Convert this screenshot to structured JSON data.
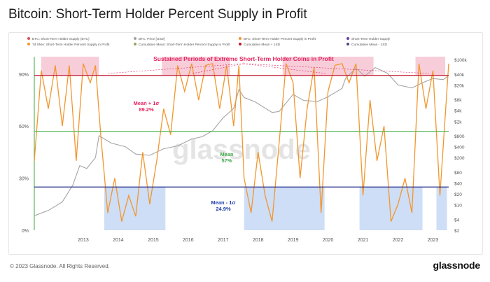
{
  "title": "Bitcoin: Short-Term Holder Percent Supply in Profit",
  "footer": {
    "copyright": "© 2023 Glassnode. All Rights Reserved.",
    "brand": "glassnode"
  },
  "colors": {
    "sth_line": "#f2962d",
    "price_line": "#a4a4a4",
    "mean_plus": "#c0172f",
    "mean": "#5cb85c",
    "mean_minus": "#1f2a8a",
    "high_zone": "#f7c4d4",
    "low_zone": "#c6d8f4",
    "annotation_pink": "#e3245f",
    "annotation_green": "#3ca84a",
    "annotation_blue": "#1e3fae"
  },
  "chart_data": {
    "type": "line",
    "title": "Bitcoin: Short-Term Holder Percent Supply in Profit",
    "legend": {
      "placement": "top",
      "entries": [
        "BTC: Short-Term Holder Supply (BTC)",
        "BTC: Price [USD]",
        "BTC: Short-Term Holder Percent Supply in Profit",
        "Short-Term Holder Supply",
        "7d SMA: Short-Term Holder Percent Supply in Profit",
        "Cumulative Mean: Short-Term Holder Percent Supply in Profit",
        "Cumulative Mean + 1SD",
        "Cumulative Mean - 1SD"
      ]
    },
    "x_ticks": [
      "2013",
      "2014",
      "2015",
      "2016",
      "2017",
      "2018",
      "2019",
      "2020",
      "2021",
      "2022",
      "2023"
    ],
    "x_range": [
      2012.1,
      2023.95
    ],
    "y_left": {
      "ticks": [
        "0%",
        "30%",
        "60%",
        "90%"
      ],
      "range": [
        0,
        100
      ]
    },
    "y_right": {
      "scale": "log",
      "ticks": [
        "$2",
        "$4",
        "$10",
        "$20",
        "$40",
        "$80",
        "$200",
        "$400",
        "$800",
        "$2k",
        "$4k",
        "$8k",
        "$20k",
        "$40k",
        "$100k"
      ],
      "range": [
        2,
        120000
      ]
    },
    "reference_lines": [
      {
        "name": "Mean + 1σ",
        "value": 89.2
      },
      {
        "name": "Mean",
        "value": 57
      },
      {
        "name": "Mean - 1σ",
        "value": 24.9
      }
    ],
    "annotations": {
      "high_periods": "Sustained Periods of Extreme Short-Term Holder Coins in Profit",
      "mean_plus_label": "Mean + 1σ",
      "mean_plus_value": "89.2%",
      "mean_label": "Mean",
      "mean_value": "57%",
      "mean_minus_label": "Mean - 1σ",
      "mean_minus_value": "24.9%"
    },
    "high_zones": [
      [
        2012.3,
        2013.95
      ],
      [
        2015.75,
        2017.7
      ],
      [
        2019.2,
        2021.8
      ],
      [
        2023.0,
        2023.85
      ]
    ],
    "low_zones": [
      [
        2014.1,
        2015.85
      ],
      [
        2018.1,
        2020.4
      ],
      [
        2021.4,
        2023.2
      ],
      [
        2023.6,
        2023.9
      ]
    ],
    "series": [
      {
        "name": "BTC: Price [USD]",
        "x": [
          2012.1,
          2012.5,
          2012.9,
          2013.2,
          2013.4,
          2013.6,
          2013.85,
          2013.95,
          2014.3,
          2014.7,
          2015.0,
          2015.4,
          2015.8,
          2016.2,
          2016.6,
          2016.9,
          2017.2,
          2017.5,
          2017.8,
          2017.95,
          2018.1,
          2018.4,
          2018.9,
          2019.1,
          2019.5,
          2019.8,
          2020.2,
          2020.5,
          2020.9,
          2021.0,
          2021.3,
          2021.55,
          2021.85,
          2022.2,
          2022.5,
          2022.9,
          2023.2,
          2023.5,
          2023.8,
          2023.95
        ],
        "values": [
          5,
          7,
          12,
          35,
          120,
          100,
          200,
          800,
          500,
          400,
          250,
          230,
          350,
          420,
          650,
          750,
          1100,
          2500,
          4500,
          15000,
          9000,
          7000,
          3500,
          3700,
          11000,
          7500,
          7000,
          9500,
          16000,
          30000,
          58000,
          35000,
          60000,
          42000,
          20000,
          16500,
          23000,
          30000,
          28000,
          37000
        ]
      },
      {
        "name": "BTC: Short-Term Holder Percent Supply in Profit",
        "x": [
          2012.1,
          2012.3,
          2012.5,
          2012.7,
          2012.9,
          2013.1,
          2013.3,
          2013.5,
          2013.7,
          2013.85,
          2014.0,
          2014.2,
          2014.4,
          2014.6,
          2014.8,
          2015.0,
          2015.2,
          2015.4,
          2015.6,
          2015.8,
          2016.0,
          2016.2,
          2016.4,
          2016.6,
          2016.8,
          2017.0,
          2017.2,
          2017.4,
          2017.6,
          2017.8,
          2017.95,
          2018.1,
          2018.3,
          2018.5,
          2018.7,
          2018.9,
          2019.1,
          2019.3,
          2019.5,
          2019.7,
          2019.9,
          2020.1,
          2020.3,
          2020.5,
          2020.7,
          2020.9,
          2021.1,
          2021.3,
          2021.5,
          2021.7,
          2021.9,
          2022.1,
          2022.3,
          2022.5,
          2022.7,
          2022.9,
          2023.1,
          2023.3,
          2023.5,
          2023.7,
          2023.95
        ],
        "values": [
          40,
          92,
          70,
          95,
          60,
          95,
          40,
          96,
          85,
          95,
          55,
          10,
          30,
          5,
          20,
          8,
          45,
          15,
          40,
          70,
          55,
          95,
          80,
          96,
          75,
          95,
          96,
          70,
          95,
          60,
          95,
          30,
          10,
          45,
          20,
          5,
          50,
          96,
          85,
          30,
          70,
          94,
          10,
          80,
          95,
          96,
          85,
          96,
          20,
          75,
          40,
          60,
          5,
          15,
          30,
          10,
          96,
          70,
          92,
          20,
          96
        ]
      }
    ]
  }
}
